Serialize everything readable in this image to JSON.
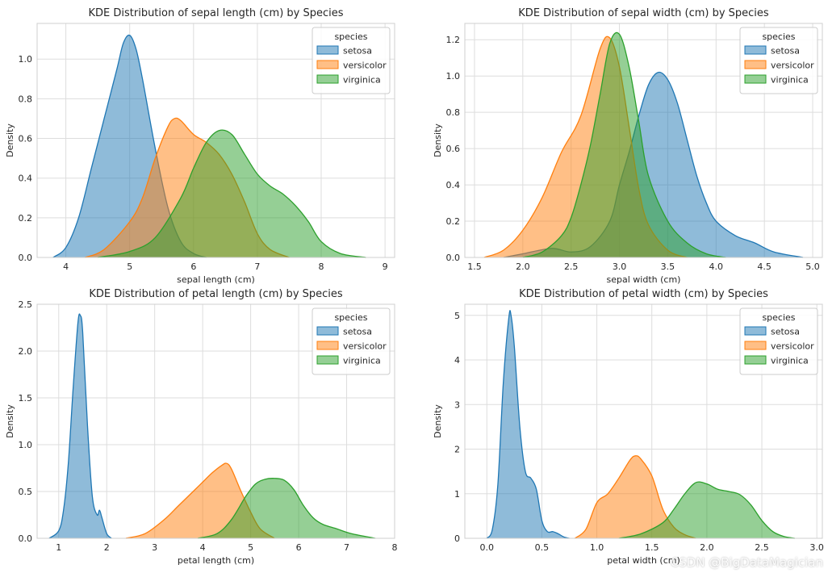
{
  "legend_title": "species",
  "species_colors": {
    "setosa": "#1f77b4",
    "versicolor": "#ff7f0e",
    "virginica": "#2ca02c"
  },
  "watermark": "CSDN @BigDataMagician",
  "chart_data": [
    {
      "type": "area",
      "title": "KDE Distribution of sepal length (cm) by Species",
      "xlabel": "sepal length (cm)",
      "ylabel": "Density",
      "xlim": [
        3.55,
        9.15
      ],
      "ylim": [
        0,
        1.18
      ],
      "xticks": [
        4,
        5,
        6,
        7,
        8,
        9
      ],
      "yticks": [
        0.0,
        0.2,
        0.4,
        0.6,
        0.8,
        1.0
      ],
      "tick_decimals": [
        0,
        1
      ],
      "grid": true,
      "legend_position": "top-right",
      "series": [
        {
          "name": "setosa",
          "x": [
            3.8,
            4.0,
            4.2,
            4.4,
            4.6,
            4.8,
            4.9,
            5.0,
            5.1,
            5.2,
            5.4,
            5.6,
            5.8,
            6.0,
            6.2
          ],
          "y": [
            0.0,
            0.05,
            0.2,
            0.45,
            0.7,
            0.95,
            1.08,
            1.12,
            1.05,
            0.9,
            0.55,
            0.25,
            0.08,
            0.02,
            0.0
          ]
        },
        {
          "name": "versicolor",
          "x": [
            4.3,
            4.6,
            5.0,
            5.2,
            5.4,
            5.6,
            5.7,
            5.8,
            6.0,
            6.2,
            6.4,
            6.6,
            6.8,
            7.0,
            7.2,
            7.5
          ],
          "y": [
            0.0,
            0.04,
            0.18,
            0.3,
            0.5,
            0.66,
            0.7,
            0.69,
            0.62,
            0.58,
            0.52,
            0.42,
            0.28,
            0.12,
            0.04,
            0.0
          ]
        },
        {
          "name": "virginica",
          "x": [
            4.5,
            5.0,
            5.4,
            5.8,
            6.0,
            6.2,
            6.4,
            6.6,
            6.8,
            7.0,
            7.2,
            7.4,
            7.6,
            7.8,
            8.0,
            8.3,
            8.7
          ],
          "y": [
            0.0,
            0.03,
            0.1,
            0.3,
            0.45,
            0.58,
            0.64,
            0.62,
            0.52,
            0.42,
            0.36,
            0.32,
            0.26,
            0.18,
            0.08,
            0.02,
            0.0
          ]
        }
      ]
    },
    {
      "type": "area",
      "title": "KDE Distribution of sepal width (cm) by Species",
      "xlabel": "sepal width (cm)",
      "ylabel": "Density",
      "xlim": [
        1.4,
        5.1
      ],
      "ylim": [
        0,
        1.29
      ],
      "xticks": [
        1.5,
        2.0,
        2.5,
        3.0,
        3.5,
        4.0,
        4.5,
        5.0
      ],
      "yticks": [
        0.0,
        0.2,
        0.4,
        0.6,
        0.8,
        1.0,
        1.2
      ],
      "tick_decimals": [
        1,
        1
      ],
      "grid": true,
      "legend_position": "top-right",
      "series": [
        {
          "name": "setosa",
          "x": [
            1.8,
            2.0,
            2.3,
            2.5,
            2.7,
            2.9,
            3.0,
            3.1,
            3.2,
            3.3,
            3.4,
            3.5,
            3.6,
            3.7,
            3.8,
            3.9,
            4.0,
            4.2,
            4.4,
            4.6,
            4.9
          ],
          "y": [
            0.0,
            0.02,
            0.05,
            0.03,
            0.06,
            0.2,
            0.4,
            0.58,
            0.78,
            0.95,
            1.02,
            0.98,
            0.85,
            0.65,
            0.45,
            0.3,
            0.2,
            0.12,
            0.08,
            0.03,
            0.0
          ]
        },
        {
          "name": "versicolor",
          "x": [
            1.6,
            1.8,
            2.0,
            2.2,
            2.4,
            2.6,
            2.8,
            2.9,
            3.0,
            3.1,
            3.2,
            3.3,
            3.5,
            3.7
          ],
          "y": [
            0.0,
            0.04,
            0.15,
            0.33,
            0.58,
            0.78,
            1.15,
            1.21,
            1.05,
            0.72,
            0.38,
            0.18,
            0.04,
            0.0
          ]
        },
        {
          "name": "virginica",
          "x": [
            2.0,
            2.2,
            2.4,
            2.5,
            2.6,
            2.7,
            2.8,
            2.9,
            3.0,
            3.1,
            3.2,
            3.3,
            3.5,
            3.7,
            3.9,
            4.1
          ],
          "y": [
            0.0,
            0.03,
            0.12,
            0.22,
            0.4,
            0.62,
            0.9,
            1.18,
            1.23,
            1.05,
            0.75,
            0.45,
            0.2,
            0.08,
            0.02,
            0.0
          ]
        }
      ]
    },
    {
      "type": "area",
      "title": "KDE Distribution of petal length (cm) by Species",
      "xlabel": "petal length (cm)",
      "ylabel": "Density",
      "xlim": [
        0.55,
        8.0
      ],
      "ylim": [
        0,
        2.5
      ],
      "xticks": [
        1,
        2,
        3,
        4,
        5,
        6,
        7,
        8
      ],
      "yticks": [
        0.0,
        0.5,
        1.0,
        1.5,
        2.0,
        2.5
      ],
      "tick_decimals": [
        0,
        1
      ],
      "grid": true,
      "legend_position": "top-right",
      "series": [
        {
          "name": "setosa",
          "x": [
            0.8,
            1.0,
            1.1,
            1.2,
            1.3,
            1.4,
            1.45,
            1.5,
            1.6,
            1.7,
            1.8,
            1.85,
            1.9,
            2.0,
            2.1
          ],
          "y": [
            0.0,
            0.08,
            0.3,
            0.8,
            1.6,
            2.3,
            2.38,
            2.2,
            1.2,
            0.45,
            0.25,
            0.3,
            0.22,
            0.05,
            0.0
          ]
        },
        {
          "name": "versicolor",
          "x": [
            2.4,
            2.8,
            3.2,
            3.5,
            3.8,
            4.0,
            4.2,
            4.4,
            4.5,
            4.6,
            4.8,
            5.0,
            5.2,
            5.5
          ],
          "y": [
            0.0,
            0.05,
            0.2,
            0.35,
            0.5,
            0.6,
            0.7,
            0.78,
            0.8,
            0.74,
            0.5,
            0.28,
            0.1,
            0.0
          ]
        },
        {
          "name": "virginica",
          "x": [
            3.9,
            4.3,
            4.6,
            4.9,
            5.1,
            5.3,
            5.5,
            5.7,
            5.9,
            6.1,
            6.3,
            6.5,
            6.8,
            7.1,
            7.6
          ],
          "y": [
            0.0,
            0.05,
            0.2,
            0.45,
            0.58,
            0.63,
            0.64,
            0.62,
            0.52,
            0.35,
            0.22,
            0.15,
            0.1,
            0.05,
            0.0
          ]
        }
      ]
    },
    {
      "type": "area",
      "title": "KDE Distribution of petal width (cm) by Species",
      "xlabel": "petal width (cm)",
      "ylabel": "Density",
      "xlim": [
        -0.2,
        3.05
      ],
      "ylim": [
        0,
        5.25
      ],
      "xticks": [
        0.0,
        0.5,
        1.0,
        1.5,
        2.0,
        2.5,
        3.0
      ],
      "yticks": [
        0,
        1,
        2,
        3,
        4,
        5
      ],
      "tick_decimals": [
        1,
        0
      ],
      "grid": true,
      "legend_position": "top-right",
      "series": [
        {
          "name": "setosa",
          "x": [
            0.0,
            0.05,
            0.1,
            0.15,
            0.2,
            0.22,
            0.25,
            0.3,
            0.35,
            0.4,
            0.45,
            0.5,
            0.55,
            0.6,
            0.65,
            0.7,
            0.75
          ],
          "y": [
            0.0,
            0.2,
            1.2,
            3.5,
            4.95,
            5.0,
            4.3,
            2.5,
            1.5,
            1.35,
            1.1,
            0.4,
            0.15,
            0.15,
            0.1,
            0.03,
            0.0
          ]
        },
        {
          "name": "versicolor",
          "x": [
            0.8,
            0.9,
            1.0,
            1.1,
            1.2,
            1.3,
            1.35,
            1.4,
            1.5,
            1.6,
            1.7,
            1.8,
            1.9
          ],
          "y": [
            0.0,
            0.2,
            0.8,
            1.0,
            1.35,
            1.75,
            1.85,
            1.78,
            1.4,
            0.65,
            0.25,
            0.08,
            0.0
          ]
        },
        {
          "name": "virginica",
          "x": [
            1.2,
            1.4,
            1.6,
            1.7,
            1.8,
            1.9,
            2.0,
            2.1,
            2.2,
            2.3,
            2.4,
            2.5,
            2.6,
            2.7,
            2.8
          ],
          "y": [
            0.0,
            0.1,
            0.35,
            0.65,
            1.0,
            1.25,
            1.22,
            1.1,
            1.05,
            0.98,
            0.75,
            0.4,
            0.15,
            0.04,
            0.0
          ]
        }
      ]
    }
  ]
}
